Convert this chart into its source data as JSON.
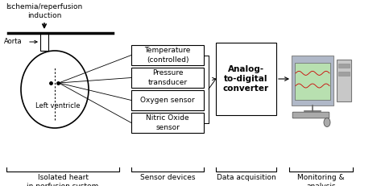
{
  "bg_color": "#ffffff",
  "text_color": "#000000",
  "box_color": "#ffffff",
  "box_edge": "#000000",
  "title_text": "Ischemia/reperfusion\ninduction",
  "aorta_label": "Aorta",
  "lv_label": "Left ventricle",
  "sensor_boxes": [
    "Temperature\n(controlled)",
    "Pressure\ntransducer",
    "Oxygen sensor",
    "Nitric Oxide\nsensor"
  ],
  "adc_label": "Analog-\nto-digital\nconverter",
  "bottom_labels": [
    "Isolated heart\nin perfusion system",
    "Sensor devices",
    "Data acquisition",
    "Monitoring &\nanalysis"
  ],
  "font_size_title": 6.5,
  "font_size_labels": 6.0,
  "font_size_box": 6.5,
  "font_size_bottom": 6.5
}
